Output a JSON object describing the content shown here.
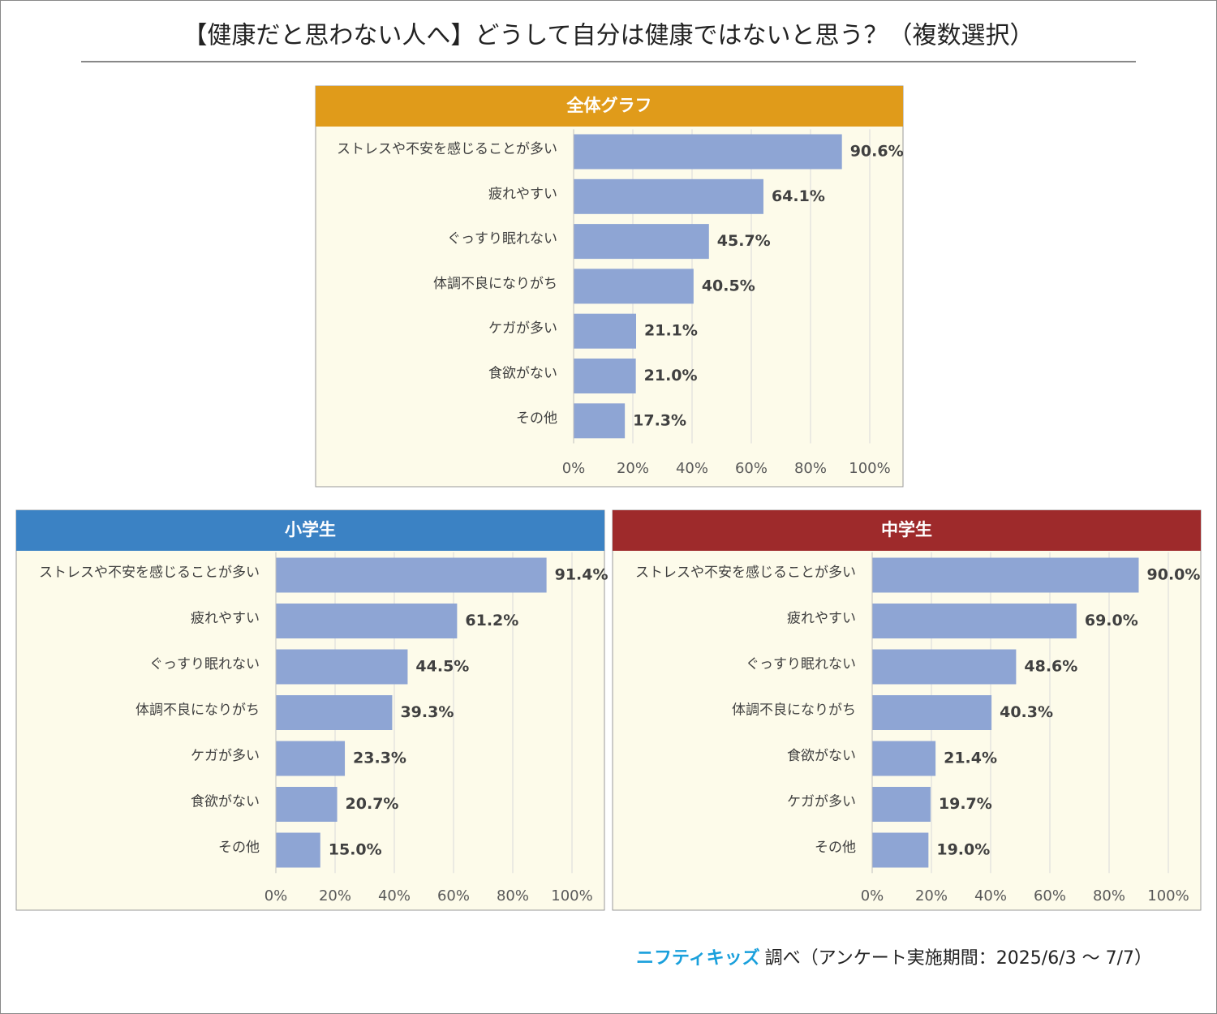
{
  "title": "【健康だと思わない人へ】どうして自分は健康ではないと思う？（複数選択）",
  "source_logo": "ニフティキッズ",
  "source": "調べ（アンケート実施期間：2025/6/3 ～ 7/7）",
  "chart_data": [
    {
      "type": "bar",
      "orientation": "horizontal",
      "title": "全体グラフ",
      "header_color": "#e09b1a",
      "color": "#8ea5d4",
      "grid": true,
      "categories": [
        "ストレスや不安を感じることが多い",
        "疲れやすい",
        "ぐっすり眠れない",
        "体調不良になりがち",
        "ケガが多い",
        "食欲がない",
        "その他"
      ],
      "values": [
        90.6,
        64.1,
        45.7,
        40.5,
        21.1,
        21.0,
        17.3
      ],
      "value_labels": [
        "90.6%",
        "64.1%",
        "45.7%",
        "40.5%",
        "21.1%",
        "21.0%",
        "17.3%"
      ],
      "xlim": [
        0,
        100
      ],
      "xticks": [
        {
          "value": 0,
          "label": "0%"
        },
        {
          "value": 20,
          "label": "20%"
        },
        {
          "value": 40,
          "label": "40%"
        },
        {
          "value": 60,
          "label": "60%"
        },
        {
          "value": 80,
          "label": "80%"
        },
        {
          "value": 100,
          "label": "100%"
        }
      ]
    },
    {
      "type": "bar",
      "orientation": "horizontal",
      "title": "小学生",
      "header_color": "#3b82c4",
      "color": "#8ea5d4",
      "grid": true,
      "categories": [
        "ストレスや不安を感じることが多い",
        "疲れやすい",
        "ぐっすり眠れない",
        "体調不良になりがち",
        "ケガが多い",
        "食欲がない",
        "その他"
      ],
      "values": [
        91.4,
        61.2,
        44.5,
        39.3,
        23.3,
        20.7,
        15.0
      ],
      "value_labels": [
        "91.4%",
        "61.2%",
        "44.5%",
        "39.3%",
        "23.3%",
        "20.7%",
        "15.0%"
      ],
      "xlim": [
        0,
        100
      ],
      "xticks": [
        {
          "value": 0,
          "label": "0%"
        },
        {
          "value": 20,
          "label": "20%"
        },
        {
          "value": 40,
          "label": "40%"
        },
        {
          "value": 60,
          "label": "60%"
        },
        {
          "value": 80,
          "label": "80%"
        },
        {
          "value": 100,
          "label": "100%"
        }
      ]
    },
    {
      "type": "bar",
      "orientation": "horizontal",
      "title": "中学生",
      "header_color": "#9e2a2b",
      "color": "#8ea5d4",
      "grid": true,
      "categories": [
        "ストレスや不安を感じることが多い",
        "疲れやすい",
        "ぐっすり眠れない",
        "体調不良になりがち",
        "食欲がない",
        "ケガが多い",
        "その他"
      ],
      "values": [
        90.0,
        69.0,
        48.6,
        40.3,
        21.4,
        19.7,
        19.0
      ],
      "value_labels": [
        "90.0%",
        "69.0%",
        "48.6%",
        "40.3%",
        "21.4%",
        "19.7%",
        "19.0%"
      ],
      "xlim": [
        0,
        100
      ],
      "xticks": [
        {
          "value": 0,
          "label": "0%"
        },
        {
          "value": 20,
          "label": "20%"
        },
        {
          "value": 40,
          "label": "40%"
        },
        {
          "value": 60,
          "label": "60%"
        },
        {
          "value": 80,
          "label": "80%"
        },
        {
          "value": 100,
          "label": "100%"
        }
      ]
    }
  ]
}
